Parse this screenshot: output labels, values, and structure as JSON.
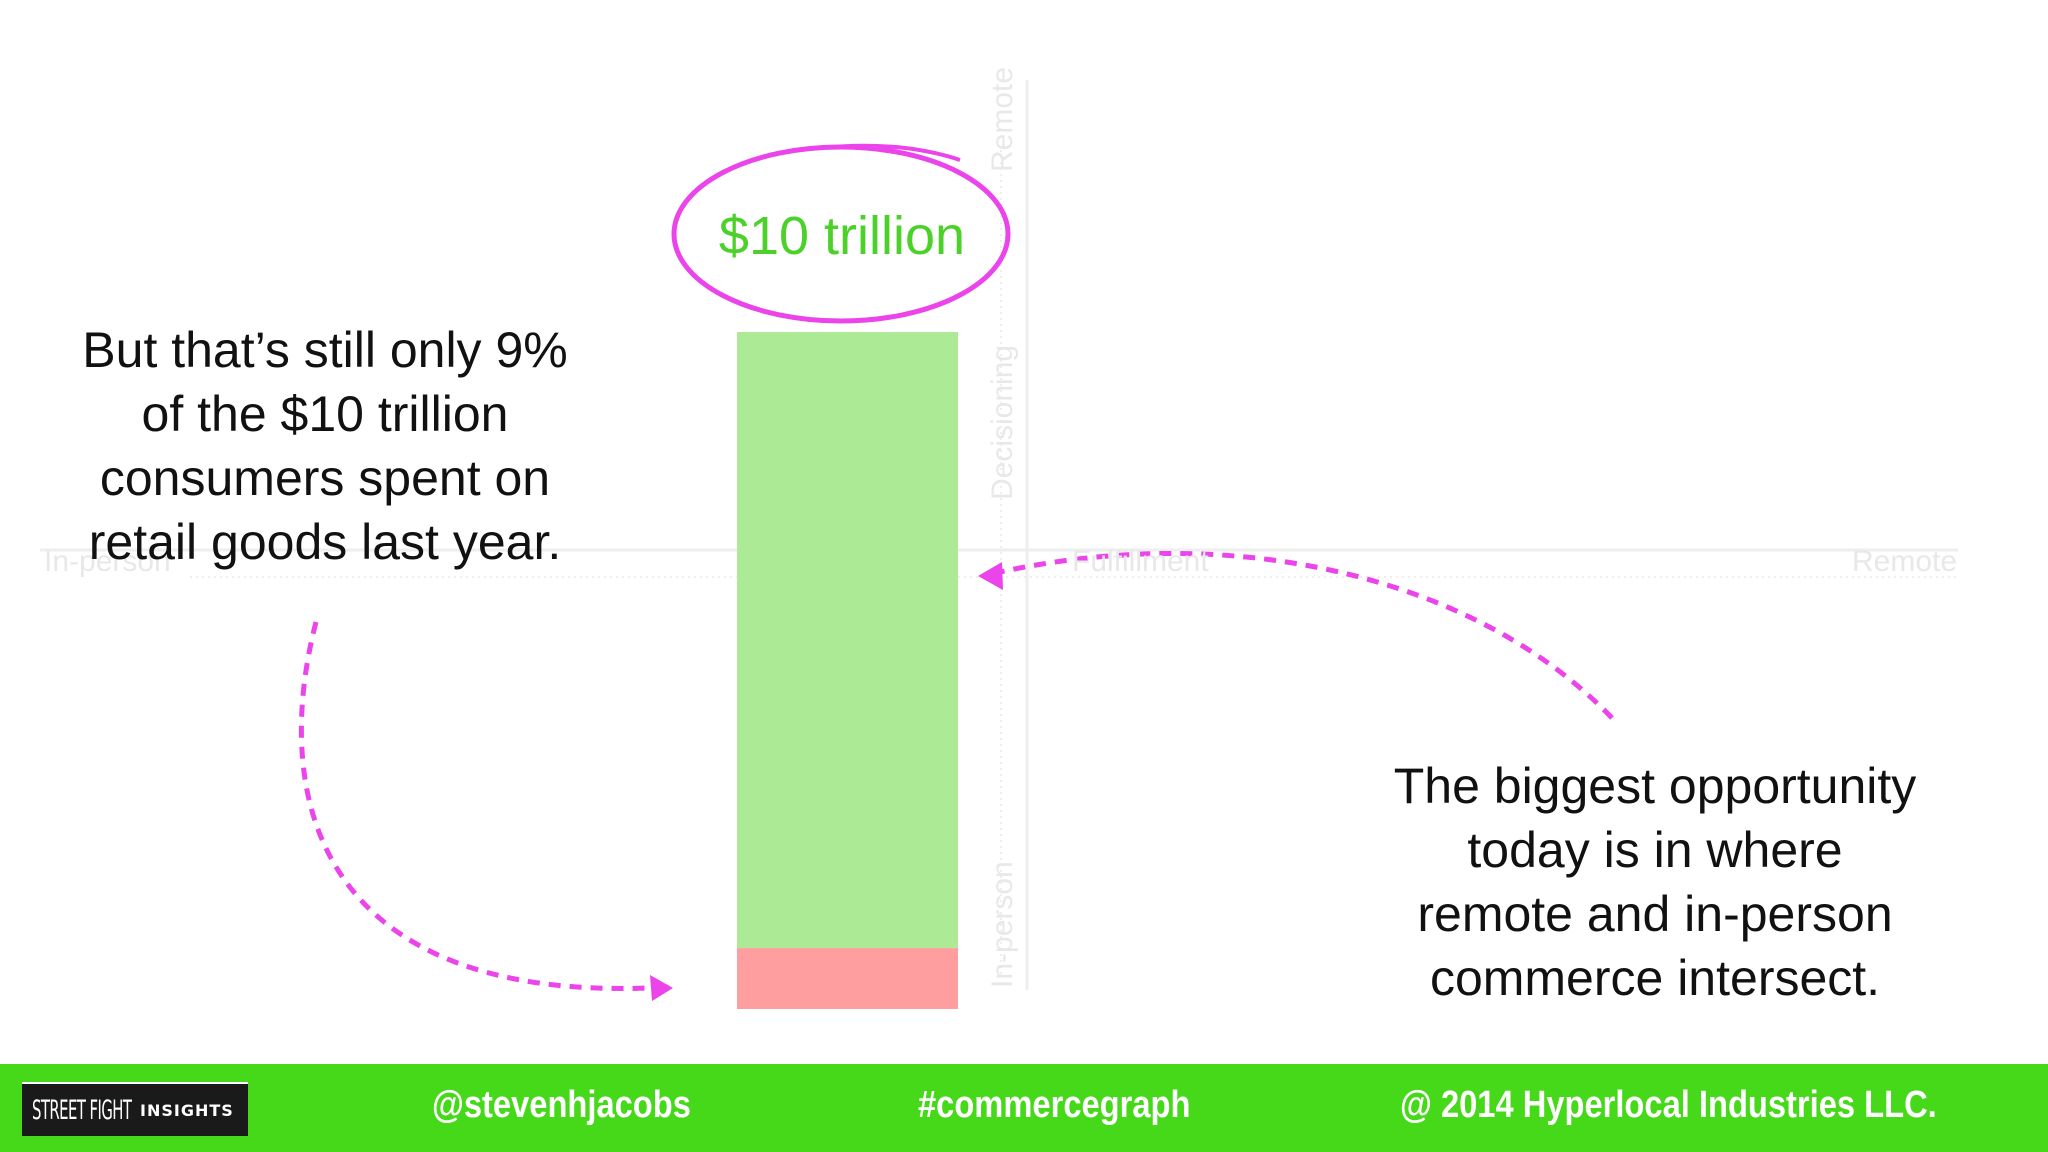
{
  "chart_data": {
    "type": "bar",
    "stacked": true,
    "categories": [
      ""
    ],
    "series": [
      {
        "values": [
          9
        ],
        "color": "#ff9e9e"
      },
      {
        "values": [
          91
        ],
        "color": "#acea96"
      }
    ],
    "total_label": "$10 trillion",
    "ylim": [
      0,
      100
    ]
  },
  "background_axes": {
    "vertical_axis": {
      "top_label": "Remote",
      "middle_label": "Decisioning",
      "bottom_label": "In-person"
    },
    "horizontal_axis": {
      "left_label": "In-person",
      "middle_label": "Fulfillment",
      "right_label": "Remote"
    }
  },
  "callouts": {
    "left_lines": [
      "But that’s still only 9%",
      "of the $10 trillion",
      "consumers spent on",
      "retail goods last year."
    ],
    "right_lines": [
      "The biggest opportunity",
      "today is in where",
      "remote and in-person",
      "commerce intersect."
    ]
  },
  "footer": {
    "logo_part1": "STREET FIGHT",
    "logo_part2": "INSIGHTS",
    "handle": "@stevenhjacobs",
    "hashtag": "#commercegraph",
    "copyright": "@ 2014 Hyperlocal Industries LLC."
  },
  "colors": {
    "accent_magenta": "#ea44ea",
    "total_green": "#4cd12a",
    "footer_green": "#45d919"
  }
}
